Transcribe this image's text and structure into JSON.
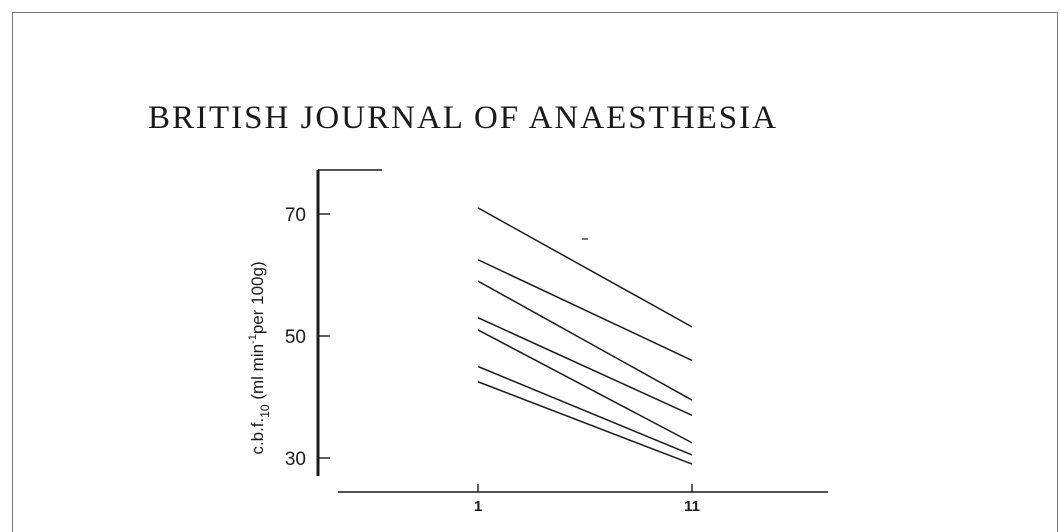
{
  "header": {
    "journal_title": "BRITISH JOURNAL OF ANAESTHESIA"
  },
  "chart_data": {
    "type": "line",
    "x": [
      "1",
      "11"
    ],
    "ylabel": {
      "main": "c.b.f.",
      "subscript": "10",
      "unit_open": "(ml min",
      "unit_sup": "-1",
      "unit_close": "per 100g)"
    },
    "y_ticks": [
      30,
      50,
      70
    ],
    "x_ticks": [
      "1",
      "11"
    ],
    "ylim": [
      27,
      77
    ],
    "grid": false,
    "series": [
      {
        "values": [
          71,
          51.5
        ]
      },
      {
        "values": [
          62.5,
          46
        ]
      },
      {
        "values": [
          59,
          39.5
        ]
      },
      {
        "values": [
          53,
          37
        ]
      },
      {
        "values": [
          51,
          32.5
        ]
      },
      {
        "values": [
          45,
          30.5
        ]
      },
      {
        "values": [
          42.5,
          29
        ]
      }
    ],
    "line_color": "#1a1a1a"
  }
}
